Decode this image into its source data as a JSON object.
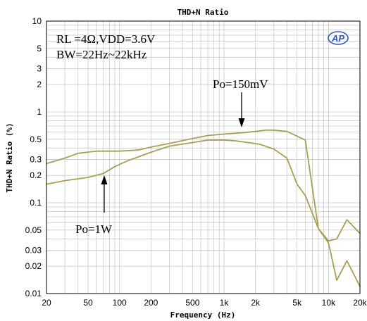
{
  "chart_data": {
    "type": "line",
    "title": "THD+N Ratio",
    "xlabel": "Frequency (Hz)",
    "ylabel": "THD+N Ratio (%)",
    "x_scale": "log",
    "y_scale": "log",
    "xlim": [
      20,
      20000
    ],
    "ylim": [
      0.01,
      10
    ],
    "grid": true,
    "x_ticks": [
      {
        "value": 20,
        "label": "20"
      },
      {
        "value": 50,
        "label": "50"
      },
      {
        "value": 100,
        "label": "100"
      },
      {
        "value": 200,
        "label": "200"
      },
      {
        "value": 500,
        "label": "500"
      },
      {
        "value": 1000,
        "label": "1k"
      },
      {
        "value": 2000,
        "label": "2k"
      },
      {
        "value": 5000,
        "label": "5k"
      },
      {
        "value": 10000,
        "label": "10k"
      },
      {
        "value": 20000,
        "label": "20k"
      }
    ],
    "y_ticks": [
      {
        "value": 10,
        "label": "10"
      },
      {
        "value": 5,
        "label": "5"
      },
      {
        "value": 3,
        "label": "3"
      },
      {
        "value": 2,
        "label": "2"
      },
      {
        "value": 1,
        "label": "1"
      },
      {
        "value": 0.5,
        "label": "0.5"
      },
      {
        "value": 0.3,
        "label": "0.3"
      },
      {
        "value": 0.2,
        "label": "0.2"
      },
      {
        "value": 0.1,
        "label": "0.1"
      },
      {
        "value": 0.05,
        "label": "0.05"
      },
      {
        "value": 0.03,
        "label": "0.03"
      },
      {
        "value": 0.02,
        "label": "0.02"
      },
      {
        "value": 0.01,
        "label": "0.01"
      }
    ],
    "series_color": "#a89f55",
    "series": [
      {
        "name": "Po=150mV",
        "points": [
          [
            20,
            0.27
          ],
          [
            30,
            0.31
          ],
          [
            40,
            0.35
          ],
          [
            60,
            0.37
          ],
          [
            80,
            0.37
          ],
          [
            100,
            0.37
          ],
          [
            150,
            0.38
          ],
          [
            200,
            0.41
          ],
          [
            300,
            0.45
          ],
          [
            500,
            0.51
          ],
          [
            700,
            0.55
          ],
          [
            1000,
            0.57
          ],
          [
            1500,
            0.59
          ],
          [
            2000,
            0.61
          ],
          [
            2500,
            0.63
          ],
          [
            3000,
            0.63
          ],
          [
            4000,
            0.61
          ],
          [
            6000,
            0.49
          ],
          [
            8000,
            0.052
          ],
          [
            10000,
            0.038
          ],
          [
            12000,
            0.04
          ],
          [
            15000,
            0.065
          ],
          [
            20000,
            0.046
          ]
        ]
      },
      {
        "name": "Po=1W",
        "points": [
          [
            20,
            0.16
          ],
          [
            30,
            0.175
          ],
          [
            50,
            0.19
          ],
          [
            70,
            0.21
          ],
          [
            90,
            0.25
          ],
          [
            120,
            0.29
          ],
          [
            200,
            0.36
          ],
          [
            300,
            0.42
          ],
          [
            500,
            0.46
          ],
          [
            700,
            0.49
          ],
          [
            1000,
            0.49
          ],
          [
            1300,
            0.48
          ],
          [
            1700,
            0.46
          ],
          [
            2200,
            0.44
          ],
          [
            3000,
            0.39
          ],
          [
            4000,
            0.31
          ],
          [
            5000,
            0.16
          ],
          [
            6000,
            0.12
          ],
          [
            8000,
            0.052
          ],
          [
            10000,
            0.036
          ],
          [
            12000,
            0.014
          ],
          [
            15000,
            0.023
          ],
          [
            20000,
            0.012
          ]
        ]
      }
    ],
    "annotations": {
      "conditions_line1": "RL =4Ω,VDD=3.6V",
      "conditions_line2": "BW=22Hz~22kHz",
      "label_150mv": "Po=150mV",
      "label_1w": "Po=1W",
      "logo_text": "AP"
    }
  }
}
